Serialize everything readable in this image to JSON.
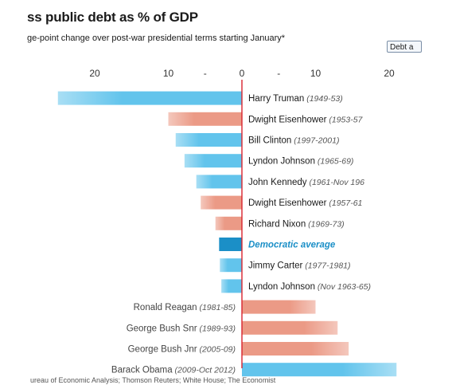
{
  "header": {
    "title": "ss public debt as % of GDP",
    "subtitle": "ge-point change over post-war presidential terms starting January*",
    "toggle_label": "Debt a"
  },
  "source_text": "ureau of Economic Analysis; Thomson Reuters; White House; The Economist",
  "colors": {
    "democrat": "#62c4ec",
    "republican": "#eb9a86",
    "dem_average": "#1b8fc7",
    "zero_line": "#d9232e",
    "dem_text": "#1b8fc7"
  },
  "chart_data": {
    "type": "bar",
    "orientation": "horizontal",
    "xlim": [
      -25,
      25
    ],
    "ticks": [
      {
        "value": -20,
        "label": "20"
      },
      {
        "value": -10,
        "label": "10"
      },
      {
        "value": -5,
        "label": "-"
      },
      {
        "value": 0,
        "label": "0"
      },
      {
        "value": 5,
        "label": "-"
      },
      {
        "value": 10,
        "label": "10"
      },
      {
        "value": 20,
        "label": "20"
      }
    ],
    "bars": [
      {
        "name": "Harry Truman",
        "term": "(1949-53)",
        "value": -25.0,
        "party": "democrat"
      },
      {
        "name": "Dwight Eisenhower",
        "term": "(1953-57",
        "value": -10.0,
        "party": "republican"
      },
      {
        "name": "Bill Clinton",
        "term": "(1997-2001)",
        "value": -9.0,
        "party": "democrat"
      },
      {
        "name": "Lyndon Johnson",
        "term": "(1965-69)",
        "value": -7.8,
        "party": "democrat"
      },
      {
        "name": "John Kennedy",
        "term": "(1961-Nov 196",
        "value": -6.2,
        "party": "democrat"
      },
      {
        "name": "Dwight Eisenhower",
        "term": "(1957-61",
        "value": -5.6,
        "party": "republican"
      },
      {
        "name": "Richard Nixon",
        "term": "(1969-73)",
        "value": -3.6,
        "party": "republican"
      },
      {
        "name": "Democratic average",
        "term": "",
        "value": -3.1,
        "party": "dem_average"
      },
      {
        "name": "Jimmy Carter",
        "term": "(1977-1981)",
        "value": -3.0,
        "party": "democrat"
      },
      {
        "name": "Lyndon Johnson",
        "term": "(Nov 1963-65)",
        "value": -2.8,
        "party": "democrat"
      },
      {
        "name": "Ronald Reagan",
        "term": "(1981-85)",
        "value": 10.0,
        "party": "republican"
      },
      {
        "name": "George Bush Snr",
        "term": "(1989-93)",
        "value": 13.0,
        "party": "republican"
      },
      {
        "name": "George Bush Jnr",
        "term": "(2005-09)",
        "value": 14.5,
        "party": "republican"
      },
      {
        "name": "Barack Obama",
        "term": "(2009-Oct 2012)",
        "value": 21.0,
        "party": "democrat"
      }
    ]
  }
}
